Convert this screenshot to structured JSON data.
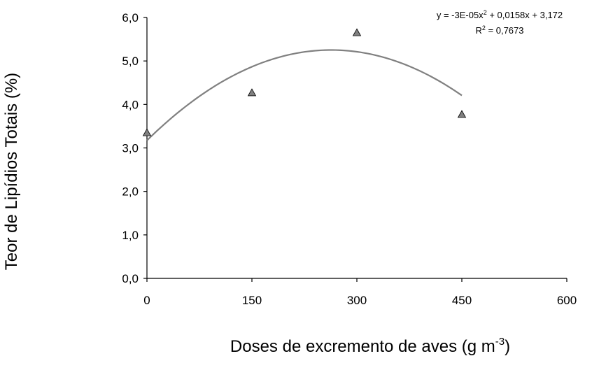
{
  "chart_data": {
    "type": "scatter",
    "title": "",
    "xlabel": "Doses de excremento de aves (g m",
    "xlabel_sup": "-3",
    "xlabel_tail": ")",
    "ylabel": "Teor de Lipídios Totais (%)",
    "xlim": [
      0,
      600
    ],
    "ylim": [
      0,
      6
    ],
    "x_ticks": [
      0,
      150,
      300,
      450,
      600
    ],
    "x_tick_labels": [
      "0",
      "150",
      "300",
      "450",
      "600"
    ],
    "y_ticks": [
      0,
      1,
      2,
      3,
      4,
      5,
      6
    ],
    "y_tick_labels": [
      "0,0",
      "1,0",
      "2,0",
      "3,0",
      "4,0",
      "5,0",
      "6,0"
    ],
    "grid": false,
    "marker": "triangle",
    "x": [
      0,
      150,
      300,
      450
    ],
    "y": [
      3.35,
      4.27,
      5.65,
      3.77
    ],
    "trendline": {
      "type": "polynomial",
      "coefficients": [
        -3e-05,
        0.0158,
        3.172
      ],
      "x_range": [
        0,
        450
      ],
      "equation_prefix": "y = -3E-05x",
      "equation_sup": "2",
      "equation_suffix": " + 0,0158x + 3,172",
      "r2_prefix": "R",
      "r2_sup": "2",
      "r2_suffix": " = 0,7673"
    },
    "colors": {
      "marker_fill": "#808080",
      "marker_stroke": "#000000",
      "trendline": "#808080",
      "axis": "#000000"
    }
  }
}
